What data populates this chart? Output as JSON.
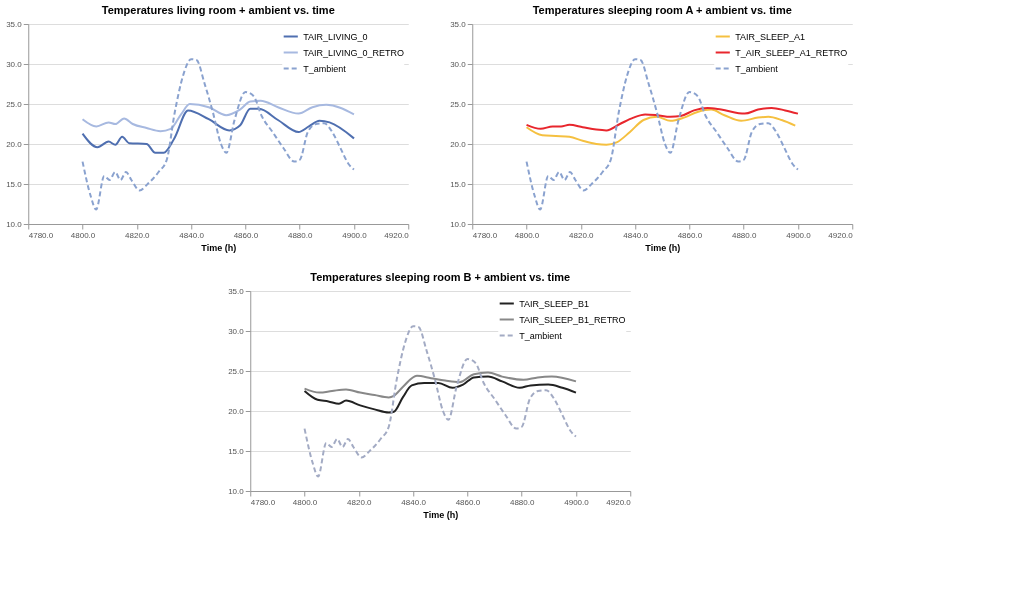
{
  "chart_data": [
    {
      "type": "line",
      "title": "Temperatures living room + ambient vs. time",
      "xlabel": "Time (h)",
      "legend": "top right",
      "grid": "y",
      "xlim": [
        4780,
        4920
      ],
      "xticks": [
        {
          "value": 4780,
          "label": "4780.0"
        },
        {
          "value": 4800,
          "label": "4800.0"
        },
        {
          "value": 4820,
          "label": "4820.0"
        },
        {
          "value": 4840,
          "label": "4840.0"
        },
        {
          "value": 4860,
          "label": "4860.0"
        },
        {
          "value": 4880,
          "label": "4880.0"
        },
        {
          "value": 4900,
          "label": "4900.0"
        },
        {
          "value": 4920,
          "label": "4920.0"
        }
      ],
      "ylim": [
        10,
        35
      ],
      "yticks": [
        {
          "value": 10,
          "label": "10.0"
        },
        {
          "value": 15,
          "label": "15.0"
        },
        {
          "value": 20,
          "label": "20.0"
        },
        {
          "value": 25,
          "label": "25.0"
        },
        {
          "value": 30,
          "label": "30.0"
        },
        {
          "value": 35,
          "label": "35.0"
        }
      ],
      "series": [
        {
          "name": "TAIR_LIVING_0",
          "color": "#4f6fb0",
          "line_style": "solid",
          "x": [
            4800,
            4805.5,
            4809.6,
            4812.1,
            4814.6,
            4817.2,
            4823.6,
            4826.8,
            4829.9,
            4833.8,
            4838.9,
            4846.5,
            4854.1,
            4858,
            4861.8,
            4865,
            4872,
            4879.6,
            4883.4,
            4887.3,
            4891,
            4900
          ],
          "values": [
            21.3,
            19.6,
            20.3,
            19.9,
            20.9,
            20.1,
            20.0,
            18.9,
            18.9,
            20.7,
            24.2,
            23.1,
            21.7,
            22.3,
            24.4,
            24.4,
            23.0,
            21.5,
            22.2,
            22.9,
            22.7,
            20.7
          ]
        },
        {
          "name": "TAIR_LIVING_0_RETRO",
          "color": "#a7b9e0",
          "line_style": "solid",
          "x": [
            4800,
            4805.1,
            4809.6,
            4812.1,
            4815.3,
            4818.5,
            4823.6,
            4828.7,
            4832.5,
            4836.3,
            4839.5,
            4846.5,
            4852.9,
            4858,
            4861.8,
            4865.6,
            4872,
            4879.6,
            4884.7,
            4889.8,
            4900
          ],
          "values": [
            23.1,
            22.2,
            22.7,
            22.5,
            23.2,
            22.5,
            22.0,
            21.6,
            21.9,
            23.7,
            25.0,
            24.6,
            23.6,
            24.3,
            25.3,
            25.4,
            24.6,
            23.8,
            24.6,
            24.9,
            23.7
          ]
        },
        {
          "name": "T_ambient",
          "color": "#8aa2cf",
          "line_style": "dashed",
          "x": [
            4800,
            4803,
            4805,
            4808,
            4810,
            4812,
            4814,
            4816,
            4818,
            4821,
            4824,
            4828,
            4831,
            4834,
            4837,
            4840,
            4842,
            4845,
            4848,
            4851,
            4853,
            4856,
            4860,
            4863,
            4866,
            4870,
            4874,
            4878,
            4880,
            4883,
            4886,
            4889,
            4892,
            4895,
            4898,
            4900
          ],
          "values": [
            17.8,
            13.5,
            11.8,
            16.0,
            15.5,
            16.5,
            15.5,
            16.5,
            15.5,
            14.2,
            15.0,
            16.5,
            18.0,
            24.0,
            28.5,
            30.6,
            30.5,
            27.5,
            24.0,
            20.0,
            18.9,
            23.0,
            26.5,
            26.0,
            23.5,
            21.5,
            19.5,
            17.8,
            18.0,
            21.5,
            22.5,
            22.6,
            21.5,
            19.5,
            17.5,
            16.8
          ]
        }
      ]
    },
    {
      "type": "line",
      "title": "Temperatures sleeping room A + ambient vs. time",
      "xlabel": "Time (h)",
      "legend": "top right",
      "grid": "y",
      "xlim": [
        4780,
        4920
      ],
      "xticks": [
        {
          "value": 4780,
          "label": "4780.0"
        },
        {
          "value": 4800,
          "label": "4800.0"
        },
        {
          "value": 4820,
          "label": "4820.0"
        },
        {
          "value": 4840,
          "label": "4840.0"
        },
        {
          "value": 4860,
          "label": "4860.0"
        },
        {
          "value": 4880,
          "label": "4880.0"
        },
        {
          "value": 4900,
          "label": "4900.0"
        },
        {
          "value": 4920,
          "label": "4920.0"
        }
      ],
      "ylim": [
        10,
        35
      ],
      "yticks": [
        {
          "value": 10,
          "label": "10.0"
        },
        {
          "value": 15,
          "label": "15.0"
        },
        {
          "value": 20,
          "label": "20.0"
        },
        {
          "value": 25,
          "label": "25.0"
        },
        {
          "value": 30,
          "label": "30.0"
        },
        {
          "value": 35,
          "label": "35.0"
        }
      ],
      "series": [
        {
          "name": "TAIR_SLEEP_A1",
          "color": "#f5c040",
          "line_style": "solid",
          "x": [
            4800,
            4805.8,
            4810.8,
            4815.8,
            4820.7,
            4825.7,
            4829.4,
            4833.2,
            4838.1,
            4843.1,
            4848.1,
            4853,
            4858,
            4863,
            4868,
            4872.9,
            4879.1,
            4885.3,
            4889.1,
            4894,
            4899
          ],
          "values": [
            22.1,
            21.1,
            21.0,
            20.9,
            20.4,
            20.0,
            19.9,
            20.2,
            21.5,
            23.0,
            23.4,
            22.9,
            23.3,
            24.0,
            24.3,
            23.6,
            22.9,
            23.3,
            23.4,
            23.0,
            22.3
          ]
        },
        {
          "name": "T_AIR_SLEEP_A1_RETRO",
          "color": "#e8262d",
          "line_style": "solid",
          "x": [
            4800,
            4805.2,
            4809.6,
            4812.7,
            4815.8,
            4820.7,
            4825.7,
            4829.4,
            4834.4,
            4839.4,
            4843.7,
            4848.1,
            4853,
            4856.8,
            4861.7,
            4866.7,
            4871.7,
            4880.4,
            4885.3,
            4890.3,
            4895.3,
            4900
          ],
          "values": [
            22.4,
            21.9,
            22.2,
            22.2,
            22.4,
            22.1,
            21.8,
            21.7,
            22.5,
            23.3,
            23.7,
            23.6,
            23.4,
            23.5,
            24.2,
            24.5,
            24.3,
            23.8,
            24.3,
            24.5,
            24.2,
            23.8
          ]
        },
        {
          "name": "T_ambient",
          "color": "#8aa2cf",
          "line_style": "dashed",
          "x": [
            4800,
            4803,
            4805,
            4808,
            4810,
            4812,
            4814,
            4816,
            4818,
            4821,
            4824,
            4828,
            4831,
            4834,
            4837,
            4840,
            4842,
            4845,
            4848,
            4851,
            4853,
            4856,
            4860,
            4863,
            4866,
            4870,
            4874,
            4878,
            4880,
            4883,
            4886,
            4889,
            4892,
            4895,
            4898,
            4900
          ],
          "values": [
            17.8,
            13.5,
            11.8,
            16.0,
            15.5,
            16.5,
            15.5,
            16.5,
            15.5,
            14.2,
            15.0,
            16.5,
            18.0,
            24.0,
            28.5,
            30.6,
            30.5,
            27.5,
            24.0,
            20.0,
            18.9,
            23.0,
            26.5,
            26.0,
            23.5,
            21.5,
            19.5,
            17.8,
            18.0,
            21.5,
            22.5,
            22.6,
            21.5,
            19.5,
            17.5,
            16.8
          ]
        }
      ]
    },
    {
      "type": "line",
      "title": "Temperatures sleeping room B + ambient vs. time",
      "xlabel": "Time (h)",
      "legend": "top right",
      "grid": "y",
      "xlim": [
        4780,
        4920
      ],
      "xticks": [
        {
          "value": 4780,
          "label": "4780.0"
        },
        {
          "value": 4800,
          "label": "4800.0"
        },
        {
          "value": 4820,
          "label": "4820.0"
        },
        {
          "value": 4840,
          "label": "4840.0"
        },
        {
          "value": 4860,
          "label": "4860.0"
        },
        {
          "value": 4880,
          "label": "4880.0"
        },
        {
          "value": 4900,
          "label": "4900.0"
        },
        {
          "value": 4920,
          "label": "4920.0"
        }
      ],
      "ylim": [
        10,
        35
      ],
      "yticks": [
        {
          "value": 10,
          "label": "10.0"
        },
        {
          "value": 15,
          "label": "15.0"
        },
        {
          "value": 20,
          "label": "20.0"
        },
        {
          "value": 25,
          "label": "25.0"
        },
        {
          "value": 30,
          "label": "30.0"
        },
        {
          "value": 35,
          "label": "35.0"
        }
      ],
      "series": [
        {
          "name": "TAIR_SLEEP_B1",
          "color": "#222222",
          "line_style": "solid",
          "x": [
            4800,
            4804.8,
            4808.8,
            4812.7,
            4815.3,
            4820.5,
            4825.8,
            4831,
            4832.9,
            4836.2,
            4839.5,
            4844.1,
            4849.3,
            4854.5,
            4858.4,
            4862.4,
            4867.6,
            4872.8,
            4879.3,
            4883.3,
            4889.8,
            4895,
            4900
          ],
          "values": [
            22.5,
            21.4,
            21.2,
            20.9,
            21.3,
            20.7,
            20.2,
            19.8,
            19.9,
            21.7,
            23.2,
            23.5,
            23.5,
            22.9,
            23.3,
            24.2,
            24.3,
            23.7,
            22.9,
            23.2,
            23.3,
            22.9,
            22.3
          ]
        },
        {
          "name": "TAIR_SLEEP_B1_RETRO",
          "color": "#888888",
          "line_style": "solid",
          "x": [
            4800,
            4805.5,
            4810.1,
            4815.3,
            4820.5,
            4825.8,
            4831,
            4832.9,
            4836.2,
            4841.4,
            4846.6,
            4851.8,
            4857.1,
            4862.4,
            4867.6,
            4872.8,
            4880.7,
            4885.9,
            4891.1,
            4900
          ],
          "values": [
            22.8,
            22.3,
            22.5,
            22.7,
            22.3,
            22.0,
            21.7,
            21.9,
            23.0,
            24.4,
            24.1,
            23.8,
            23.6,
            24.6,
            24.8,
            24.3,
            23.9,
            24.2,
            24.3,
            23.7
          ]
        },
        {
          "name": "T_ambient",
          "color": "#a3abc4",
          "line_style": "dashed",
          "x": [
            4800,
            4803,
            4805,
            4808,
            4810,
            4812,
            4814,
            4816,
            4818,
            4821,
            4824,
            4828,
            4831,
            4834,
            4837,
            4840,
            4842,
            4845,
            4848,
            4851,
            4853,
            4856,
            4860,
            4863,
            4866,
            4870,
            4874,
            4878,
            4880,
            4883,
            4886,
            4889,
            4892,
            4895,
            4898,
            4900
          ],
          "values": [
            17.8,
            13.5,
            11.8,
            16.0,
            15.5,
            16.5,
            15.5,
            16.5,
            15.5,
            14.2,
            15.0,
            16.5,
            18.0,
            24.0,
            28.5,
            30.6,
            30.5,
            27.5,
            24.0,
            20.0,
            18.9,
            23.0,
            26.5,
            26.0,
            23.5,
            21.5,
            19.5,
            17.8,
            18.0,
            21.5,
            22.5,
            22.6,
            21.5,
            19.5,
            17.5,
            16.8
          ]
        }
      ]
    }
  ]
}
